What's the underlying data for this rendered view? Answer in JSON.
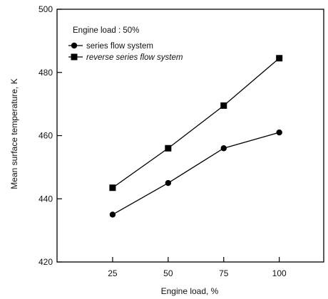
{
  "chart_data": {
    "type": "line",
    "title": "",
    "xlabel": "Engine load, %",
    "ylabel": "Mean surface temperature, K",
    "legend_title": "Engine load : 50%",
    "legend_position": "top-left",
    "grid": false,
    "x": [
      25,
      50,
      75,
      100
    ],
    "x_tick_labels": [
      "25",
      "50",
      "75",
      "100"
    ],
    "xlim": [
      0,
      120
    ],
    "ylim": [
      420,
      500
    ],
    "y_ticks": [
      420,
      440,
      460,
      480,
      500
    ],
    "y_tick_labels": [
      "420",
      "440",
      "460",
      "480",
      "500"
    ],
    "series": [
      {
        "name": "series flow system",
        "marker": "circle",
        "values": [
          435,
          445,
          456,
          461
        ],
        "color": "#000000"
      },
      {
        "name": "reverse series flow system",
        "marker": "square",
        "values": [
          443.5,
          456,
          469.5,
          484.5
        ],
        "color": "#000000"
      }
    ]
  }
}
